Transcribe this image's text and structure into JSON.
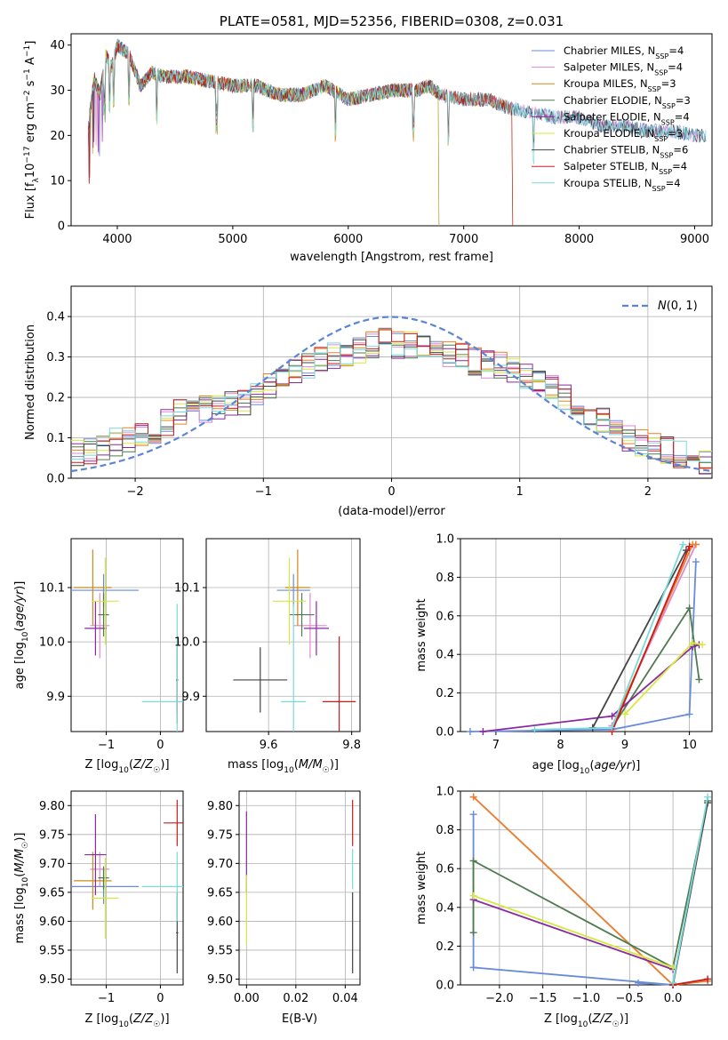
{
  "chart_data": [
    {
      "id": "spectrum",
      "type": "line",
      "title": "PLATE=0581, MJD=52356, FIBERID=0308, z=0.031",
      "xlabel": "wavelength [Angstrom, rest frame]",
      "ylabel": "Flux [f_λ10^-17 erg cm^-2 s^-1 A^-1]",
      "xlim": [
        3600,
        9150
      ],
      "ylim": [
        0,
        42.5
      ],
      "xticks": [
        "4000",
        "5000",
        "6000",
        "7000",
        "8000",
        "9000"
      ],
      "yticks": [
        "0",
        "10",
        "20",
        "30",
        "40"
      ],
      "grid": false,
      "legend_position": "top-right",
      "data_flux": {
        "x": [
          3750,
          3800,
          3850,
          3900,
          3950,
          4000,
          4100,
          4200,
          4300,
          4400,
          4600,
          4800,
          5000,
          5200,
          5400,
          5600,
          5800,
          6000,
          6200,
          6400,
          6600,
          6700,
          6800,
          7000,
          7200,
          7400,
          7600,
          7800,
          8000,
          8200,
          8400,
          8600,
          8800,
          9000,
          9100
        ],
        "y": [
          22,
          33,
          29,
          38,
          35,
          40,
          38,
          31,
          34,
          33,
          33,
          32,
          31,
          31,
          29,
          29,
          31,
          28,
          29,
          30,
          30,
          31,
          29,
          28,
          28,
          26,
          25,
          24,
          24,
          22,
          22,
          21,
          21,
          20,
          20
        ]
      },
      "series": [
        {
          "name": "Chabrier MILES, N_SSP=4",
          "color": "#6a8bd8",
          "end": 9100
        },
        {
          "name": "Salpeter MILES, N_SSP=4",
          "color": "#e08ad0",
          "end": 9100
        },
        {
          "name": "Kroupa MILES, N_SSP=3",
          "color": "#cc8a1a",
          "end": 7420
        },
        {
          "name": "Chabrier ELODIE, N_SSP=3",
          "color": "#4f7a4f",
          "end": 6780
        },
        {
          "name": "Salpeter ELODIE, N_SSP=4",
          "color": "#8a2aa0",
          "end": 6780
        },
        {
          "name": "Kroupa ELODIE, N_SSP=3",
          "color": "#d6e840",
          "end": 6780
        },
        {
          "name": "Chabrier STELIB, N_SSP=6",
          "color": "#444444",
          "end": 9100
        },
        {
          "name": "Salpeter STELIB, N_SSP=4",
          "color": "#cc1a1a",
          "end": 7420
        },
        {
          "name": "Kroupa STELIB, N_SSP=4",
          "color": "#7adada",
          "end": 9100
        }
      ]
    },
    {
      "id": "residuals",
      "type": "bar",
      "xlabel": "(data-model)/error",
      "ylabel": "Normed distribution",
      "xlim": [
        -2.5,
        2.5
      ],
      "ylim": [
        0,
        0.475
      ],
      "xticks": [
        "−2",
        "−1",
        "0",
        "1",
        "2"
      ],
      "yticks": [
        "0.0",
        "0.1",
        "0.2",
        "0.3",
        "0.4"
      ],
      "grid": true,
      "legend": "N(0,1)",
      "legend_position": "top-right",
      "bin_width": 0.1,
      "bin_start": -2.5,
      "values": [
        0.06,
        0.07,
        0.08,
        0.09,
        0.1,
        0.11,
        0.12,
        0.14,
        0.16,
        0.17,
        0.17,
        0.18,
        0.18,
        0.19,
        0.21,
        0.23,
        0.25,
        0.27,
        0.28,
        0.29,
        0.3,
        0.31,
        0.32,
        0.33,
        0.34,
        0.33,
        0.33,
        0.32,
        0.32,
        0.31,
        0.3,
        0.29,
        0.28,
        0.28,
        0.27,
        0.25,
        0.23,
        0.22,
        0.2,
        0.18,
        0.16,
        0.14,
        0.12,
        0.1,
        0.09,
        0.08,
        0.07,
        0.06,
        0.05,
        0.04
      ],
      "normal_curve": {
        "mean": 0,
        "sigma": 1,
        "color": "#5b84d6"
      }
    },
    {
      "id": "age-vs-Z",
      "type": "scatter",
      "xlabel": "Z [log10(Z/Z☉)]",
      "ylabel": "age  [log10(age/yr)]",
      "xlim": [
        -1.65,
        0.42
      ],
      "ylim": [
        9.835,
        10.19
      ],
      "xticks": [
        "−1",
        "0"
      ],
      "yticks": [
        "9.9",
        "10.0",
        "10.1"
      ],
      "grid": true,
      "points": [
        {
          "x": -1.05,
          "y": 10.095,
          "xerr": 0.65,
          "yerr": 0.03,
          "color": "#6a8bd8"
        },
        {
          "x": -1.12,
          "y": 10.03,
          "xerr": 0.18,
          "yerr": 0.06,
          "color": "#e08ad0"
        },
        {
          "x": -1.25,
          "y": 10.1,
          "xerr": 0.35,
          "yerr": 0.07,
          "color": "#cc8a1a"
        },
        {
          "x": -1.05,
          "y": 10.05,
          "xerr": 0.1,
          "yerr": 0.04,
          "color": "#4f7a4f"
        },
        {
          "x": -1.2,
          "y": 10.025,
          "xerr": 0.2,
          "yerr": 0.05,
          "color": "#8a2aa0"
        },
        {
          "x": -1.02,
          "y": 10.075,
          "xerr": 0.25,
          "yerr": 0.08,
          "color": "#d6e840"
        },
        {
          "x": 0.31,
          "y": 9.93,
          "xerr": 0.02,
          "yerr": 0.06,
          "color": "#444444"
        },
        {
          "x": 0.31,
          "y": 9.89,
          "xerr": 0.02,
          "yerr": 0.04,
          "color": "#cc1a1a"
        },
        {
          "x": 0.31,
          "y": 9.89,
          "xerr": 0.65,
          "yerr": 0.18,
          "color": "#7adada"
        }
      ]
    },
    {
      "id": "age-vs-mass",
      "type": "scatter",
      "xlabel": "mass [log10(M/M☉)]",
      "ylabel": "",
      "xlim": [
        9.45,
        9.82
      ],
      "ylim": [
        9.835,
        10.19
      ],
      "xticks": [
        "9.6",
        "9.8"
      ],
      "yticks": [
        "9.9",
        "10.0",
        "10.1"
      ],
      "grid": true,
      "points": [
        {
          "x": 9.66,
          "y": 10.095,
          "xerr": 0.04,
          "yerr": 0.03,
          "color": "#6a8bd8"
        },
        {
          "x": 9.7,
          "y": 10.03,
          "xerr": 0.04,
          "yerr": 0.06,
          "color": "#e08ad0"
        },
        {
          "x": 9.67,
          "y": 10.1,
          "xerr": 0.03,
          "yerr": 0.07,
          "color": "#cc8a1a"
        },
        {
          "x": 9.68,
          "y": 10.05,
          "xerr": 0.03,
          "yerr": 0.04,
          "color": "#4f7a4f"
        },
        {
          "x": 9.715,
          "y": 10.025,
          "xerr": 0.03,
          "yerr": 0.05,
          "color": "#8a2aa0"
        },
        {
          "x": 9.65,
          "y": 10.075,
          "xerr": 0.04,
          "yerr": 0.08,
          "color": "#d6e840"
        },
        {
          "x": 9.58,
          "y": 9.93,
          "xerr": 0.065,
          "yerr": 0.06,
          "color": "#444444"
        },
        {
          "x": 9.77,
          "y": 9.89,
          "xerr": 0.04,
          "yerr": 0.12,
          "color": "#cc1a1a"
        },
        {
          "x": 9.66,
          "y": 9.89,
          "xerr": 0.03,
          "yerr": 0.18,
          "color": "#7adada"
        }
      ]
    },
    {
      "id": "weight-vs-age",
      "type": "line",
      "xlabel": "age  [log10(age/yr)]",
      "ylabel": "mass weight",
      "xlim": [
        6.45,
        10.35
      ],
      "ylim": [
        0,
        1.0
      ],
      "xticks": [
        "7",
        "8",
        "9",
        "10"
      ],
      "yticks": [
        "0.0",
        "0.2",
        "0.4",
        "0.6",
        "0.8",
        "1.0"
      ],
      "grid": true,
      "series": [
        {
          "name": "Chabrier MILES",
          "color": "#6a8bd8",
          "x": [
            6.6,
            8.8,
            10.0,
            10.1
          ],
          "y": [
            0.0,
            0.01,
            0.09,
            0.88
          ]
        },
        {
          "name": "Salpeter MILES",
          "color": "#e08ad0",
          "x": [
            8.8,
            10.1
          ],
          "y": [
            0.03,
            0.97
          ]
        },
        {
          "name": "Kroupa MILES",
          "color": "#e8822a",
          "x": [
            8.8,
            10.05,
            10.1
          ],
          "y": [
            0.02,
            0.97,
            0.97
          ]
        },
        {
          "name": "Chabrier ELODIE",
          "color": "#4f7a4f",
          "x": [
            8.8,
            10.0,
            10.15
          ],
          "y": [
            0.02,
            0.64,
            0.27
          ]
        },
        {
          "name": "Salpeter ELODIE",
          "color": "#8a2aa0",
          "x": [
            6.8,
            8.8,
            10.05,
            10.15
          ],
          "y": [
            0.0,
            0.08,
            0.44,
            0.45
          ]
        },
        {
          "name": "Kroupa ELODIE",
          "color": "#d6e840",
          "x": [
            9.0,
            10.05,
            10.2
          ],
          "y": [
            0.09,
            0.46,
            0.45
          ]
        },
        {
          "name": "Chabrier STELIB",
          "color": "#444444",
          "x": [
            8.5,
            9.95
          ],
          "y": [
            0.02,
            0.94
          ]
        },
        {
          "name": "Salpeter STELIB",
          "color": "#cc1a1a",
          "x": [
            8.8,
            10.0
          ],
          "y": [
            0.0,
            0.96
          ]
        },
        {
          "name": "Kroupa STELIB",
          "color": "#7adada",
          "x": [
            7.6,
            8.8,
            9.9
          ],
          "y": [
            0.01,
            0.02,
            0.97
          ]
        }
      ]
    },
    {
      "id": "mass-vs-Z",
      "type": "scatter",
      "xlabel": "Z [log10(Z/Z☉)]",
      "ylabel": "mass [log10(M/M☉)]",
      "xlim": [
        -1.65,
        0.42
      ],
      "ylim": [
        9.49,
        9.825
      ],
      "xticks": [
        "−1",
        "0"
      ],
      "yticks": [
        "9.50",
        "9.55",
        "9.60",
        "9.65",
        "9.70",
        "9.75",
        "9.80"
      ],
      "grid": true,
      "points": [
        {
          "x": -1.05,
          "y": 9.66,
          "xerr": 0.65,
          "yerr": 0.03,
          "color": "#6a8bd8"
        },
        {
          "x": -1.12,
          "y": 9.69,
          "xerr": 0.18,
          "yerr": 0.03,
          "color": "#e08ad0"
        },
        {
          "x": -1.25,
          "y": 9.67,
          "xerr": 0.35,
          "yerr": 0.05,
          "color": "#cc8a1a"
        },
        {
          "x": -1.05,
          "y": 9.675,
          "xerr": 0.1,
          "yerr": 0.02,
          "color": "#4f7a4f"
        },
        {
          "x": -1.2,
          "y": 9.715,
          "xerr": 0.2,
          "yerr": 0.07,
          "color": "#8a2aa0"
        },
        {
          "x": -1.02,
          "y": 9.64,
          "xerr": 0.25,
          "yerr": 0.07,
          "color": "#d6e840"
        },
        {
          "x": 0.31,
          "y": 9.58,
          "xerr": 0.02,
          "yerr": 0.07,
          "color": "#444444"
        },
        {
          "x": 0.31,
          "y": 9.77,
          "xerr": 0.25,
          "yerr": 0.04,
          "color": "#cc1a1a"
        },
        {
          "x": 0.31,
          "y": 9.66,
          "xerr": 0.65,
          "yerr": 0.06,
          "color": "#7adada"
        }
      ]
    },
    {
      "id": "mass-vs-ebv",
      "type": "scatter",
      "xlabel": "E(B-V)",
      "ylabel": "",
      "xlim": [
        -0.003,
        0.046
      ],
      "ylim": [
        9.49,
        9.825
      ],
      "xticks": [
        "0.00",
        "0.02",
        "0.04"
      ],
      "yticks": [
        "9.50",
        "9.55",
        "9.60",
        "9.65",
        "9.70",
        "9.75",
        "9.80"
      ],
      "grid": true,
      "points": [
        {
          "x": 0.0,
          "y": 9.72,
          "yerr": 0.07,
          "color": "#8a2aa0"
        },
        {
          "x": 0.0,
          "y": 9.62,
          "yerr": 0.06,
          "color": "#d6e840"
        },
        {
          "x": 0.043,
          "y": 9.77,
          "yerr": 0.04,
          "color": "#cc1a1a"
        },
        {
          "x": 0.043,
          "y": 9.69,
          "yerr": 0.035,
          "color": "#7adada"
        },
        {
          "x": 0.043,
          "y": 9.58,
          "yerr": 0.07,
          "color": "#444444"
        }
      ]
    },
    {
      "id": "weight-vs-Z",
      "type": "line",
      "xlabel": "Z [log10(Z/Z☉)]",
      "ylabel": "mass weight",
      "xlim": [
        -2.45,
        0.45
      ],
      "ylim": [
        0,
        1.0
      ],
      "xticks": [
        "−2.0",
        "−1.5",
        "−1.0",
        "−0.5",
        "0.0"
      ],
      "yticks": [
        "0.0",
        "0.2",
        "0.4",
        "0.6",
        "0.8",
        "1.0"
      ],
      "grid": true,
      "series": [
        {
          "name": "Chabrier MILES",
          "color": "#6a8bd8",
          "x": [
            -2.3,
            -2.3,
            0.0,
            -0.4
          ],
          "y": [
            0.88,
            0.09,
            0.0,
            0.01
          ]
        },
        {
          "name": "Salpeter MILES",
          "color": "#e08ad0",
          "x": [
            -2.3,
            0.0,
            0.4
          ],
          "y": [
            0.97,
            0.0,
            0.02
          ]
        },
        {
          "name": "Kroupa MILES",
          "color": "#e8822a",
          "x": [
            -2.3,
            0.0,
            0.4
          ],
          "y": [
            0.97,
            0.0,
            0.02
          ]
        },
        {
          "name": "Chabrier ELODIE",
          "color": "#4f7a4f",
          "x": [
            -2.3,
            -2.3,
            0.0,
            0.4
          ],
          "y": [
            0.27,
            0.64,
            0.09,
            0.95
          ]
        },
        {
          "name": "Salpeter ELODIE",
          "color": "#8a2aa0",
          "x": [
            -2.3,
            0.0
          ],
          "y": [
            0.44,
            0.08
          ]
        },
        {
          "name": "Kroupa ELODIE",
          "color": "#d6e840",
          "x": [
            -2.3,
            0.0
          ],
          "y": [
            0.46,
            0.09
          ]
        },
        {
          "name": "Chabrier STELIB",
          "color": "#444444",
          "x": [
            0.0,
            0.4
          ],
          "y": [
            0.0,
            0.94
          ]
        },
        {
          "name": "Salpeter STELIB",
          "color": "#cc1a1a",
          "x": [
            0.0,
            0.4
          ],
          "y": [
            0.0,
            0.03
          ]
        },
        {
          "name": "Kroupa STELIB",
          "color": "#7adada",
          "x": [
            0.0,
            0.4
          ],
          "y": [
            0.01,
            0.97
          ]
        }
      ]
    }
  ]
}
